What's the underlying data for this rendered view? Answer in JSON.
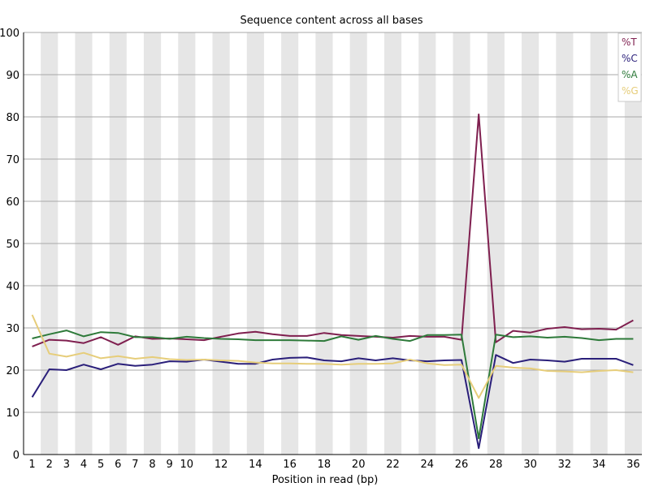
{
  "chart_data": {
    "type": "line",
    "title": "Sequence content across all bases",
    "xlabel": "Position in read (bp)",
    "ylabel": "",
    "ylim": [
      0,
      100
    ],
    "yticks": [
      0,
      10,
      20,
      30,
      40,
      50,
      60,
      70,
      80,
      90,
      100
    ],
    "x": [
      1,
      2,
      3,
      4,
      5,
      6,
      7,
      8,
      9,
      10,
      11,
      12,
      13,
      14,
      15,
      16,
      17,
      18,
      19,
      20,
      21,
      22,
      23,
      24,
      25,
      26,
      27,
      28,
      29,
      30,
      31,
      32,
      33,
      34,
      35,
      36
    ],
    "xtick_labels": [
      1,
      2,
      3,
      4,
      5,
      6,
      7,
      8,
      9,
      10,
      12,
      14,
      16,
      18,
      20,
      22,
      24,
      26,
      28,
      30,
      32,
      34,
      36
    ],
    "grid": "alternating vertical bands",
    "legend_position": "top-right",
    "series": [
      {
        "name": "%T",
        "color": "#7f1f4f",
        "values": [
          25.6,
          27.2,
          27.0,
          26.4,
          27.8,
          26.0,
          28.0,
          27.4,
          27.5,
          27.3,
          27.1,
          27.9,
          28.7,
          29.1,
          28.5,
          28.1,
          28.1,
          28.8,
          28.3,
          28.1,
          27.9,
          27.7,
          28.1,
          27.9,
          27.9,
          27.2,
          80.6,
          26.6,
          29.3,
          28.9,
          29.8,
          30.2,
          29.7,
          29.8,
          29.6,
          31.8
        ]
      },
      {
        "name": "%C",
        "color": "#2a1f7a",
        "values": [
          13.6,
          20.2,
          20.0,
          21.3,
          20.2,
          21.5,
          21.0,
          21.3,
          22.1,
          22.0,
          22.5,
          22.0,
          21.5,
          21.5,
          22.5,
          22.9,
          23.0,
          22.3,
          22.1,
          22.8,
          22.3,
          22.8,
          22.3,
          22.1,
          22.3,
          22.4,
          1.5,
          23.6,
          21.7,
          22.5,
          22.3,
          22.0,
          22.7,
          22.7,
          22.7,
          21.2
        ]
      },
      {
        "name": "%A",
        "color": "#2e7a3a",
        "values": [
          27.5,
          28.5,
          29.4,
          28.0,
          29.0,
          28.8,
          27.8,
          27.8,
          27.4,
          27.9,
          27.6,
          27.4,
          27.3,
          27.1,
          27.1,
          27.1,
          27.0,
          26.9,
          28.0,
          27.2,
          28.1,
          27.4,
          26.9,
          28.3,
          28.3,
          28.4,
          3.8,
          28.4,
          27.8,
          28.0,
          27.7,
          27.9,
          27.6,
          27.1,
          27.4,
          27.4
        ]
      },
      {
        "name": "%G",
        "color": "#e6cd7a",
        "values": [
          33.1,
          23.9,
          23.2,
          24.1,
          22.8,
          23.3,
          22.7,
          23.1,
          22.6,
          22.4,
          22.5,
          22.3,
          22.2,
          21.8,
          21.6,
          21.6,
          21.5,
          21.5,
          21.3,
          21.5,
          21.5,
          21.6,
          22.5,
          21.6,
          21.2,
          21.3,
          13.4,
          21.0,
          20.6,
          20.4,
          19.8,
          19.7,
          19.5,
          19.8,
          20.0,
          19.5
        ]
      }
    ]
  }
}
